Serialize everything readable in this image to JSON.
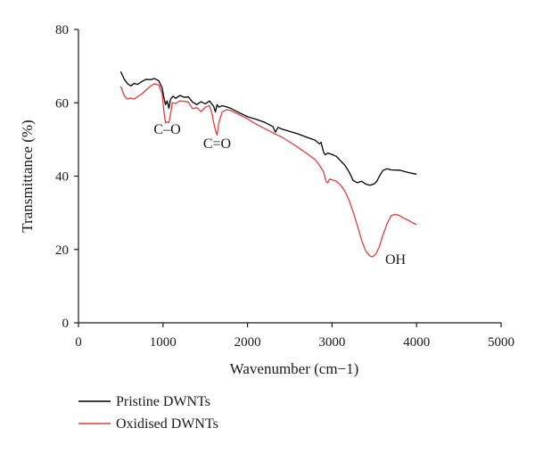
{
  "chart_data": {
    "type": "line",
    "title": "",
    "xlabel": "Wavenumber (cm−1)",
    "ylabel": "Transmittance (%)",
    "xlim": [
      0,
      5000
    ],
    "ylim": [
      0,
      80
    ],
    "xticks": [
      0,
      1000,
      2000,
      3000,
      4000,
      5000
    ],
    "yticks": [
      0,
      20,
      40,
      60,
      80
    ],
    "grid": false,
    "legend_position": "bottom-left",
    "series": [
      {
        "name": "Pristine DWNTs",
        "color": "#000000",
        "points": [
          [
            500,
            68.5
          ],
          [
            540,
            66.5
          ],
          [
            580,
            65.2
          ],
          [
            620,
            64.6
          ],
          [
            660,
            65.3
          ],
          [
            700,
            65.0
          ],
          [
            750,
            65.8
          ],
          [
            800,
            66.4
          ],
          [
            850,
            66.3
          ],
          [
            900,
            66.6
          ],
          [
            950,
            66.0
          ],
          [
            990,
            64.0
          ],
          [
            1010,
            61.5
          ],
          [
            1030,
            59.5
          ],
          [
            1050,
            60.5
          ],
          [
            1070,
            58.5
          ],
          [
            1090,
            61.0
          ],
          [
            1120,
            61.8
          ],
          [
            1150,
            61.2
          ],
          [
            1200,
            62.0
          ],
          [
            1250,
            61.5
          ],
          [
            1300,
            61.6
          ],
          [
            1350,
            60.2
          ],
          [
            1400,
            59.5
          ],
          [
            1450,
            60.3
          ],
          [
            1500,
            59.7
          ],
          [
            1550,
            60.5
          ],
          [
            1600,
            59.0
          ],
          [
            1620,
            57.5
          ],
          [
            1640,
            59.5
          ],
          [
            1660,
            58.8
          ],
          [
            1700,
            59.2
          ],
          [
            1750,
            58.9
          ],
          [
            1800,
            58.5
          ],
          [
            1900,
            57.3
          ],
          [
            2000,
            56.2
          ],
          [
            2100,
            55.5
          ],
          [
            2200,
            54.7
          ],
          [
            2300,
            53.5
          ],
          [
            2330,
            52.0
          ],
          [
            2360,
            53.3
          ],
          [
            2400,
            52.9
          ],
          [
            2500,
            52.2
          ],
          [
            2600,
            51.5
          ],
          [
            2700,
            50.6
          ],
          [
            2800,
            49.8
          ],
          [
            2850,
            48.8
          ],
          [
            2870,
            49.2
          ],
          [
            2900,
            46.5
          ],
          [
            2920,
            45.8
          ],
          [
            2950,
            46.3
          ],
          [
            3000,
            45.9
          ],
          [
            3050,
            45.4
          ],
          [
            3100,
            44.2
          ],
          [
            3150,
            43.0
          ],
          [
            3200,
            41.2
          ],
          [
            3250,
            38.8
          ],
          [
            3300,
            38.2
          ],
          [
            3350,
            38.6
          ],
          [
            3400,
            37.8
          ],
          [
            3450,
            37.5
          ],
          [
            3500,
            37.9
          ],
          [
            3530,
            38.6
          ],
          [
            3560,
            40.0
          ],
          [
            3600,
            41.5
          ],
          [
            3650,
            42.0
          ],
          [
            3700,
            41.7
          ],
          [
            3800,
            41.6
          ],
          [
            3900,
            41.0
          ],
          [
            4000,
            40.5
          ]
        ]
      },
      {
        "name": "Oxidised DWNTs",
        "color": "#e03c3c",
        "points": [
          [
            500,
            64.5
          ],
          [
            540,
            62.0
          ],
          [
            580,
            61.0
          ],
          [
            620,
            61.3
          ],
          [
            660,
            61.0
          ],
          [
            700,
            61.7
          ],
          [
            750,
            62.4
          ],
          [
            800,
            63.5
          ],
          [
            850,
            64.5
          ],
          [
            900,
            65.2
          ],
          [
            950,
            64.8
          ],
          [
            990,
            62.5
          ],
          [
            1010,
            57.8
          ],
          [
            1030,
            54.5
          ],
          [
            1050,
            54.8
          ],
          [
            1070,
            54.6
          ],
          [
            1090,
            57.0
          ],
          [
            1110,
            60.0
          ],
          [
            1150,
            59.8
          ],
          [
            1200,
            60.5
          ],
          [
            1250,
            60.4
          ],
          [
            1300,
            60.2
          ],
          [
            1350,
            58.4
          ],
          [
            1400,
            58.7
          ],
          [
            1450,
            57.6
          ],
          [
            1500,
            58.8
          ],
          [
            1550,
            59.2
          ],
          [
            1580,
            57.0
          ],
          [
            1600,
            54.5
          ],
          [
            1620,
            52.5
          ],
          [
            1640,
            51.2
          ],
          [
            1660,
            54.5
          ],
          [
            1700,
            57.5
          ],
          [
            1750,
            58.1
          ],
          [
            1800,
            57.9
          ],
          [
            1900,
            56.8
          ],
          [
            2000,
            55.6
          ],
          [
            2100,
            54.2
          ],
          [
            2200,
            53.0
          ],
          [
            2300,
            51.8
          ],
          [
            2400,
            50.7
          ],
          [
            2500,
            49.3
          ],
          [
            2600,
            47.8
          ],
          [
            2700,
            46.2
          ],
          [
            2800,
            44.5
          ],
          [
            2850,
            43.0
          ],
          [
            2900,
            41.2
          ],
          [
            2930,
            38.5
          ],
          [
            2950,
            38.2
          ],
          [
            2970,
            39.2
          ],
          [
            3000,
            39.0
          ],
          [
            3050,
            38.6
          ],
          [
            3100,
            37.6
          ],
          [
            3150,
            36.0
          ],
          [
            3200,
            33.5
          ],
          [
            3250,
            30.2
          ],
          [
            3300,
            26.5
          ],
          [
            3350,
            22.5
          ],
          [
            3400,
            19.5
          ],
          [
            3450,
            18.2
          ],
          [
            3480,
            18.0
          ],
          [
            3520,
            18.8
          ],
          [
            3560,
            20.8
          ],
          [
            3600,
            23.8
          ],
          [
            3650,
            27.0
          ],
          [
            3700,
            29.2
          ],
          [
            3750,
            29.6
          ],
          [
            3800,
            29.2
          ],
          [
            3850,
            28.5
          ],
          [
            3900,
            28.0
          ],
          [
            3950,
            27.3
          ],
          [
            4000,
            26.8
          ]
        ]
      }
    ],
    "annotations": [
      {
        "text": "C–O",
        "x": 1050,
        "y": 51.5
      },
      {
        "text": "C=O",
        "x": 1640,
        "y": 47.7
      },
      {
        "text": "OH",
        "x": 3750,
        "y": 16.0
      }
    ]
  }
}
